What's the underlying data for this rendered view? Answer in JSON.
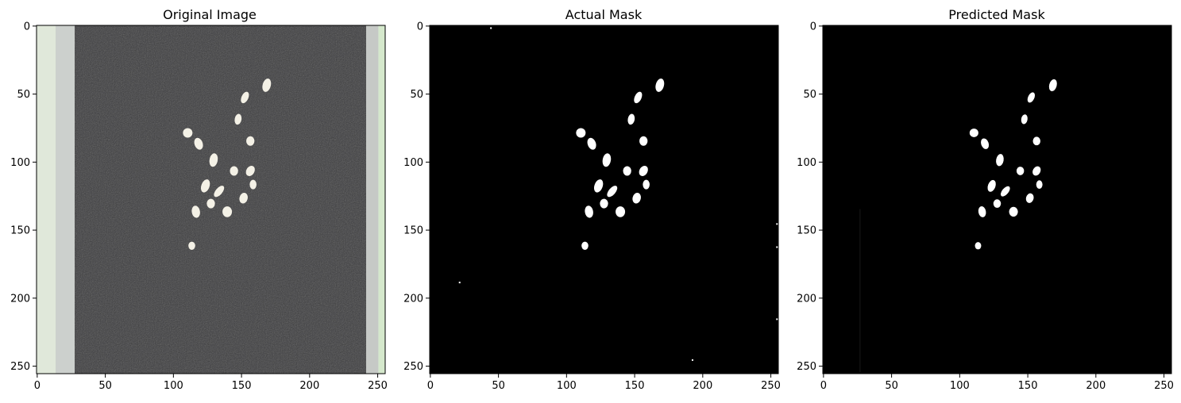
{
  "figure": {
    "background": "#ffffff",
    "panels": [
      {
        "title": "Original Image",
        "kind": "photo",
        "xticks": [
          "0",
          "50",
          "100",
          "150",
          "200",
          "250"
        ],
        "yticks": [
          "0",
          "50",
          "100",
          "150",
          "200",
          "250"
        ]
      },
      {
        "title": "Actual Mask",
        "kind": "mask",
        "xticks": [
          "0",
          "50",
          "100",
          "150",
          "200",
          "250"
        ],
        "yticks": [
          "0",
          "50",
          "100",
          "150",
          "200",
          "250"
        ]
      },
      {
        "title": "Predicted Mask",
        "kind": "mask",
        "xticks": [
          "0",
          "50",
          "100",
          "150",
          "200",
          "250"
        ],
        "yticks": [
          "0",
          "50",
          "100",
          "150",
          "200",
          "250"
        ]
      }
    ],
    "colors": {
      "photo_background": "#3a3a3b",
      "photo_edge": "#e6ebe3",
      "photo_objects": "#f4f1e6",
      "mask_background": "#000000",
      "mask_objects": "#ffffff"
    }
  }
}
